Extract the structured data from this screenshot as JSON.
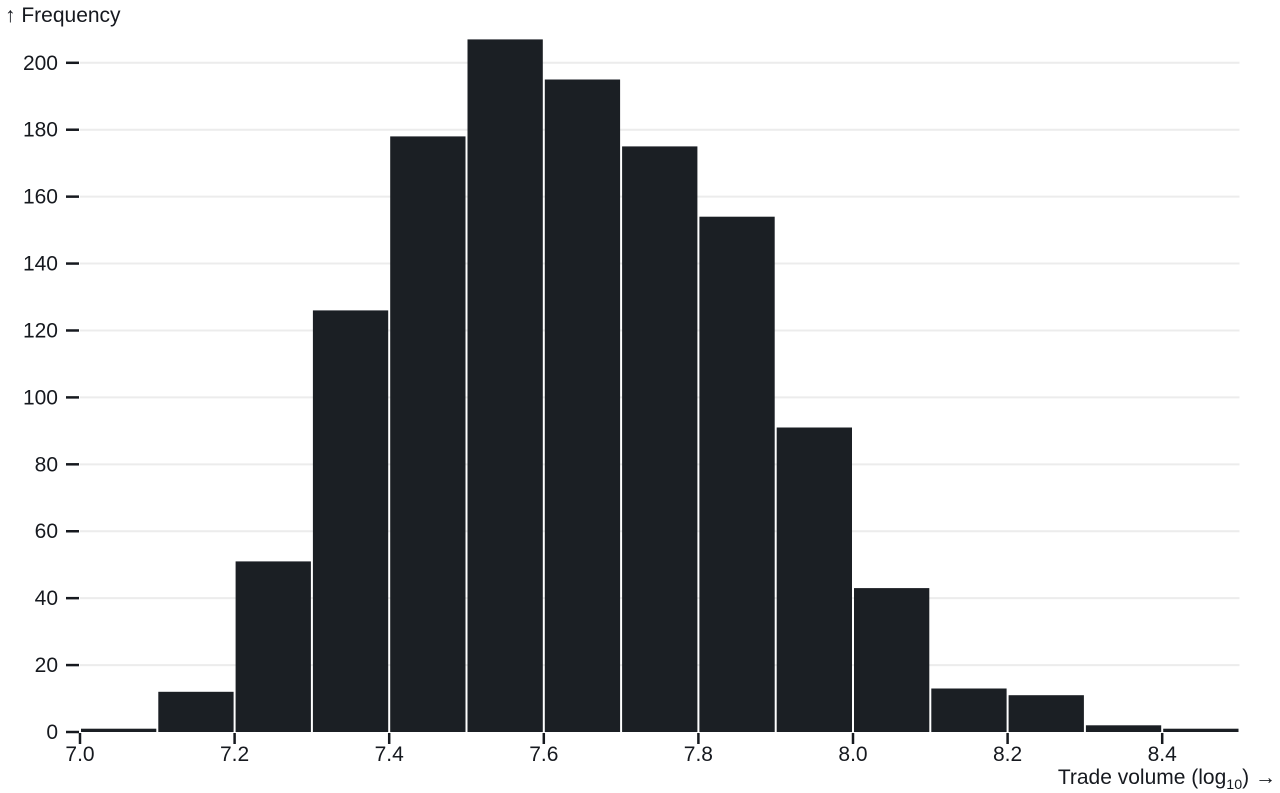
{
  "chart_data": {
    "type": "bar",
    "subtype": "histogram",
    "title": "",
    "xlabel": "Trade volume (log₁₀) →",
    "ylabel": "↑ Frequency",
    "bin_width": 0.1,
    "bin_edges": [
      7.0,
      7.1,
      7.2,
      7.3,
      7.4,
      7.5,
      7.6,
      7.7,
      7.8,
      7.9,
      8.0,
      8.1,
      8.2,
      8.3,
      8.4,
      8.5
    ],
    "counts": [
      1,
      12,
      51,
      126,
      178,
      207,
      195,
      175,
      154,
      91,
      43,
      13,
      11,
      2,
      1
    ],
    "x_ticks": [
      7.0,
      7.2,
      7.4,
      7.6,
      7.8,
      8.0,
      8.2,
      8.4
    ],
    "y_ticks": [
      0,
      20,
      40,
      60,
      80,
      100,
      120,
      140,
      160,
      180,
      200
    ],
    "xlim": [
      7.0,
      8.5
    ],
    "ylim": [
      0,
      207
    ],
    "grid": "horizontal-y-gridlines",
    "legend": "none"
  },
  "axis_labels": {
    "y": "↑ Frequency",
    "x_pre": "Trade volume (log",
    "x_sub": "10",
    "x_post": ") →"
  },
  "colors": {
    "bar": "#1b1f24",
    "grid": "#ececec",
    "tick": "#16191f",
    "text": "#16191f",
    "background": "#ffffff"
  }
}
